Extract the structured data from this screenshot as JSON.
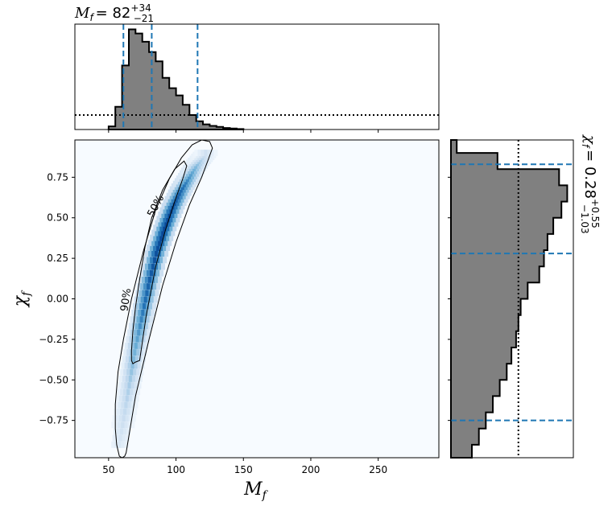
{
  "chart_data": [
    {
      "panel": "main",
      "type": "heatmap",
      "xlabel": "M",
      "xlabel_sub": "f",
      "ylabel": "χ",
      "ylabel_sub": "f",
      "xlim": [
        25,
        295
      ],
      "ylim": [
        -0.98,
        0.98
      ],
      "xticks": [
        50,
        100,
        150,
        200,
        250
      ],
      "yticks": [
        0.75,
        0.5,
        0.25,
        0.0,
        -0.25,
        -0.5,
        -0.75
      ],
      "ytick_labels": [
        "0.75",
        "0.50",
        "0.25",
        "0.00",
        "−0.25",
        "−0.50",
        "−0.75"
      ],
      "density_ridge": {
        "x": [
          58,
          62,
          66,
          70,
          75,
          80,
          86,
          92,
          98,
          104,
          110,
          116,
          122
        ],
        "y": [
          -0.9,
          -0.7,
          -0.5,
          -0.3,
          -0.1,
          0.1,
          0.3,
          0.45,
          0.58,
          0.68,
          0.76,
          0.84,
          0.9
        ],
        "weight": [
          0.15,
          0.25,
          0.35,
          0.5,
          0.7,
          0.85,
          0.95,
          1.0,
          0.95,
          0.8,
          0.6,
          0.4,
          0.2
        ]
      },
      "contours": [
        {
          "label": "50%",
          "x": [
            73,
            78,
            85,
            92,
            99,
            105,
            108,
            106,
            99,
            90,
            82,
            77,
            73,
            70,
            68,
            67,
            67,
            68,
            70,
            73
          ],
          "y": [
            -0.38,
            -0.1,
            0.2,
            0.42,
            0.6,
            0.74,
            0.82,
            0.85,
            0.8,
            0.67,
            0.5,
            0.32,
            0.12,
            -0.05,
            -0.2,
            -0.32,
            -0.38,
            -0.4,
            -0.39,
            -0.38
          ]
        },
        {
          "label": "90%",
          "x": [
            63,
            70,
            80,
            90,
            100,
            110,
            119,
            124,
            127,
            125,
            119,
            112,
            104,
            95,
            85,
            76,
            67,
            61,
            57,
            55,
            55,
            56,
            58,
            60,
            62,
            63
          ],
          "y": [
            -0.95,
            -0.6,
            -0.25,
            0.08,
            0.35,
            0.58,
            0.75,
            0.86,
            0.93,
            0.97,
            0.98,
            0.95,
            0.87,
            0.74,
            0.55,
            0.3,
            0.0,
            -0.25,
            -0.45,
            -0.65,
            -0.8,
            -0.9,
            -0.97,
            -0.98,
            -0.97,
            -0.95
          ]
        }
      ]
    },
    {
      "panel": "top-marginal",
      "type": "bar",
      "title": "M",
      "title_sub": "f",
      "title_value": "= 82",
      "title_sup": "+34",
      "title_low": "−21",
      "bin_edges": [
        50,
        55,
        60,
        65,
        70,
        75,
        80,
        85,
        90,
        95,
        100,
        105,
        110,
        115,
        120,
        125,
        130,
        135,
        140,
        145,
        150
      ],
      "values": [
        0.03,
        0.22,
        0.62,
        0.97,
        0.93,
        0.85,
        0.75,
        0.66,
        0.5,
        0.4,
        0.33,
        0.24,
        0.14,
        0.08,
        0.05,
        0.035,
        0.025,
        0.015,
        0.01,
        0.005
      ],
      "prior_level": 0.14,
      "quantiles": [
        61,
        82,
        116
      ]
    },
    {
      "panel": "right-marginal",
      "type": "bar",
      "title": "χ",
      "title_sub": "f",
      "title_value": "= 0.28",
      "title_sup": "+0.55",
      "title_low": "−1.03",
      "bin_edges": [
        -0.98,
        -0.9,
        -0.8,
        -0.7,
        -0.6,
        -0.5,
        -0.4,
        -0.3,
        -0.2,
        -0.1,
        0.0,
        0.1,
        0.2,
        0.3,
        0.4,
        0.5,
        0.6,
        0.7,
        0.8,
        0.9,
        0.98
      ],
      "values": [
        0.18,
        0.24,
        0.3,
        0.36,
        0.42,
        0.48,
        0.52,
        0.56,
        0.58,
        0.6,
        0.66,
        0.76,
        0.8,
        0.83,
        0.88,
        0.95,
        1.0,
        0.93,
        0.4,
        0.05
      ],
      "prior_level": 0.58,
      "quantiles": [
        -0.75,
        0.28,
        0.83
      ]
    }
  ]
}
